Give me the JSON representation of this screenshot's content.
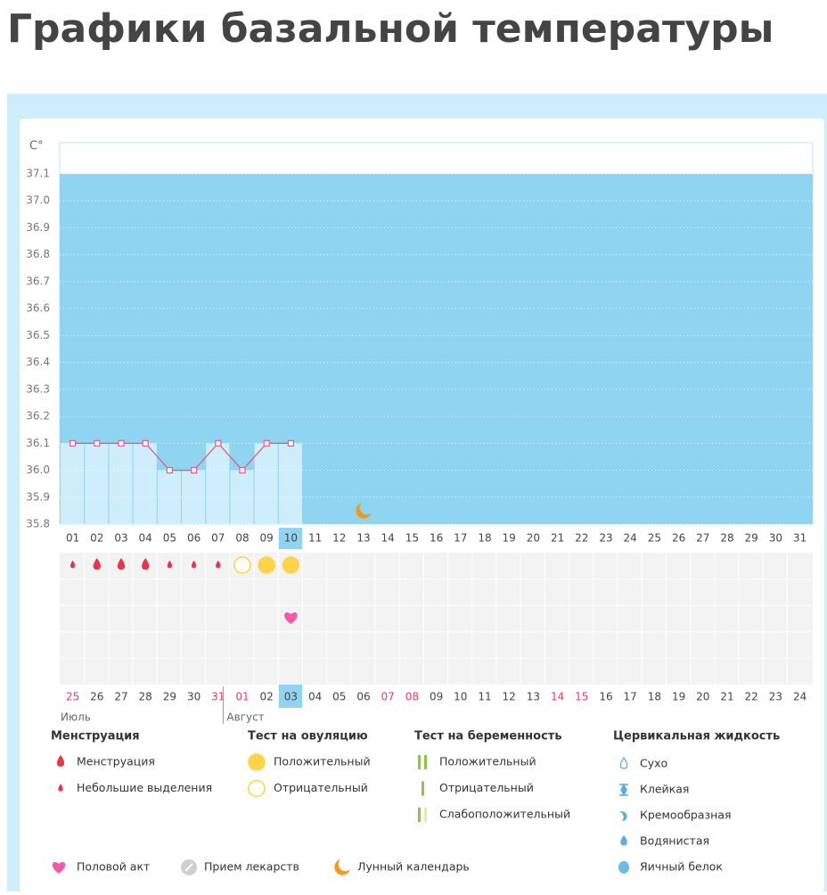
{
  "header": {
    "title": "Графики базальной температуры"
  },
  "chart_data": {
    "type": "line",
    "y_unit": "C°",
    "categories": [
      "01",
      "02",
      "03",
      "04",
      "05",
      "06",
      "07",
      "08",
      "09",
      "10",
      "11",
      "12",
      "13",
      "14",
      "15",
      "16",
      "17",
      "18",
      "19",
      "20",
      "21",
      "22",
      "23",
      "24",
      "25",
      "26",
      "27",
      "28",
      "29",
      "30",
      "31"
    ],
    "values": [
      36.1,
      36.1,
      36.1,
      36.1,
      36.0,
      36.0,
      36.1,
      36.0,
      36.1,
      36.1,
      null,
      null,
      null,
      null,
      null,
      null,
      null,
      null,
      null,
      null,
      null,
      null,
      null,
      null,
      null,
      null,
      null,
      null,
      null,
      null,
      null
    ],
    "color": "#e0607e",
    "grid": true,
    "ylim": [
      35.8,
      37.1
    ],
    "yticks": [
      35.8,
      35.9,
      {
        "value": 36,
        "label": "36.0"
      },
      36.1,
      36.2,
      36.3,
      36.4,
      36.5,
      36.6,
      36.7,
      36.8,
      36.9,
      {
        "value": 37,
        "label": "37.0"
      },
      37.1
    ]
  },
  "calendar": {
    "dates": [
      "25",
      "26",
      "27",
      "28",
      "29",
      "30",
      "31",
      "01",
      "02",
      "03",
      "04",
      "05",
      "06",
      "07",
      "08",
      "09",
      "10",
      "11",
      "12",
      "13",
      "14",
      "15",
      "16",
      "17",
      "18",
      "19",
      "20",
      "21",
      "22",
      "23",
      "24"
    ],
    "weekend": [
      true,
      false,
      false,
      false,
      false,
      false,
      true,
      true,
      false,
      false,
      false,
      false,
      false,
      true,
      true,
      false,
      false,
      false,
      false,
      false,
      true,
      true,
      false,
      false,
      false,
      false,
      false,
      false,
      false,
      false,
      false
    ],
    "months": [
      {
        "label": "Июль",
        "start": 0
      },
      {
        "label": "Август",
        "start": 7
      }
    ]
  },
  "events": [
    {
      "day": 0,
      "group": 0,
      "item": 1
    },
    {
      "day": 1,
      "group": 0,
      "item": 0
    },
    {
      "day": 2,
      "group": 0,
      "item": 0
    },
    {
      "day": 3,
      "group": 0,
      "item": 0
    },
    {
      "day": 4,
      "group": 0,
      "item": 1
    },
    {
      "day": 5,
      "group": 0,
      "item": 1
    },
    {
      "day": 6,
      "group": 0,
      "item": 1
    },
    {
      "day": 7,
      "group": 1,
      "item": 1
    },
    {
      "day": 8,
      "group": 1,
      "item": 0
    },
    {
      "day": 9,
      "group": 1,
      "item": 0
    },
    {
      "day": 9,
      "group": 4,
      "item": 0
    },
    {
      "day": 12,
      "group": 4,
      "item": 2
    }
  ],
  "legend": {
    "groups": [
      {
        "title": "Менструация",
        "items": [
          "Менструация",
          "Небольшие выделения"
        ]
      },
      {
        "title": "Тест на овуляцию",
        "items": [
          "Положительный",
          "Отрицательный"
        ]
      },
      {
        "title": "Тест на беременность",
        "items": [
          "Положительный",
          "Отрицательный",
          "Слабоположительный"
        ]
      },
      {
        "title": "Цервикальная жидкость",
        "items": [
          "Сухо",
          "Клейкая",
          "Кремообразная",
          "Водянистая",
          "Яичный белок"
        ]
      },
      {
        "items": [
          "Половой акт",
          "Прием лекарств",
          "Лунный календарь"
        ]
      }
    ]
  }
}
